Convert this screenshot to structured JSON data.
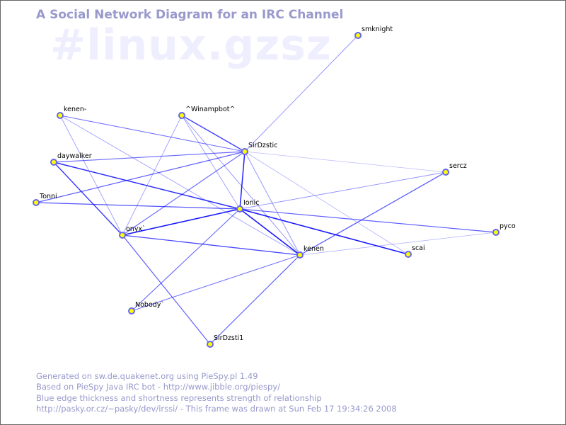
{
  "title": "A Social Network Diagram for an IRC Channel",
  "channel": "#linux.gzsz",
  "footer": [
    "Generated on sw.de.quakenet.org using PieSpy.pl 1.49",
    "Based on PieSpy Java IRC bot - http://www.jibble.org/piespy/",
    "Blue edge thickness and shortness represents strength of relationship",
    "http://pasky.or.cz/~pasky/dev/irssi/ - This frame was drawn at Sun Feb 17 19:34:26 2008"
  ],
  "colors": {
    "node_fill": "#ffff00",
    "node_border": "#6666ee",
    "edge": "#0000ff",
    "text": "#9999cc"
  },
  "nodes": [
    {
      "id": "smknight",
      "label": "smknight"
    },
    {
      "id": "kenen-",
      "label": "kenen-"
    },
    {
      "id": "winampbot",
      "label": "^Winampbot^"
    },
    {
      "id": "SirDzstic",
      "label": "SirDzstic"
    },
    {
      "id": "daywalker",
      "label": "daywalker"
    },
    {
      "id": "sercz",
      "label": "sercz"
    },
    {
      "id": "Tonni",
      "label": "Tonni"
    },
    {
      "id": "Ionic",
      "label": "Ionic"
    },
    {
      "id": "onyx",
      "label": "onyx`"
    },
    {
      "id": "pyco",
      "label": "pyco"
    },
    {
      "id": "kenen",
      "label": "kenen"
    },
    {
      "id": "scai",
      "label": "scai"
    },
    {
      "id": "Nobody",
      "label": "Nobody`"
    },
    {
      "id": "SirDzsti1",
      "label": "SirDzsti1"
    }
  ],
  "edges": [
    {
      "from": "smknight",
      "to": "SirDzstic",
      "strength": 0.35
    },
    {
      "from": "kenen-",
      "to": "SirDzstic",
      "strength": 0.5
    },
    {
      "from": "kenen-",
      "to": "kenen",
      "strength": 0.3
    },
    {
      "from": "kenen-",
      "to": "onyx",
      "strength": 0.3
    },
    {
      "from": "winampbot",
      "to": "SirDzstic",
      "strength": 0.75
    },
    {
      "from": "winampbot",
      "to": "onyx",
      "strength": 0.3
    },
    {
      "from": "winampbot",
      "to": "kenen",
      "strength": 0.35
    },
    {
      "from": "winampbot",
      "to": "Ionic",
      "strength": 0.3
    },
    {
      "from": "daywalker",
      "to": "SirDzstic",
      "strength": 0.55
    },
    {
      "from": "daywalker",
      "to": "Ionic",
      "strength": 0.85
    },
    {
      "from": "daywalker",
      "to": "onyx",
      "strength": 0.8
    },
    {
      "from": "Tonni",
      "to": "SirDzstic",
      "strength": 0.6
    },
    {
      "from": "Tonni",
      "to": "Ionic",
      "strength": 0.65
    },
    {
      "from": "SirDzstic",
      "to": "Ionic",
      "strength": 0.9
    },
    {
      "from": "SirDzstic",
      "to": "onyx",
      "strength": 0.55
    },
    {
      "from": "SirDzstic",
      "to": "sercz",
      "strength": 0.15
    },
    {
      "from": "SirDzstic",
      "to": "kenen",
      "strength": 0.35
    },
    {
      "from": "SirDzstic",
      "to": "scai",
      "strength": 0.2
    },
    {
      "from": "Ionic",
      "to": "onyx",
      "strength": 0.95
    },
    {
      "from": "Ionic",
      "to": "sercz",
      "strength": 0.35
    },
    {
      "from": "Ionic",
      "to": "pyco",
      "strength": 0.6
    },
    {
      "from": "Ionic",
      "to": "scai",
      "strength": 0.95
    },
    {
      "from": "Ionic",
      "to": "kenen",
      "strength": 0.95
    },
    {
      "from": "Ionic",
      "to": "Nobody",
      "strength": 0.55
    },
    {
      "from": "onyx",
      "to": "kenen",
      "strength": 0.7
    },
    {
      "from": "onyx",
      "to": "SirDzsti1",
      "strength": 0.6
    },
    {
      "from": "kenen",
      "to": "sercz",
      "strength": 0.65
    },
    {
      "from": "kenen",
      "to": "pyco",
      "strength": 0.2
    },
    {
      "from": "kenen",
      "to": "Nobody",
      "strength": 0.5
    },
    {
      "from": "kenen",
      "to": "SirDzsti1",
      "strength": 0.6
    }
  ]
}
